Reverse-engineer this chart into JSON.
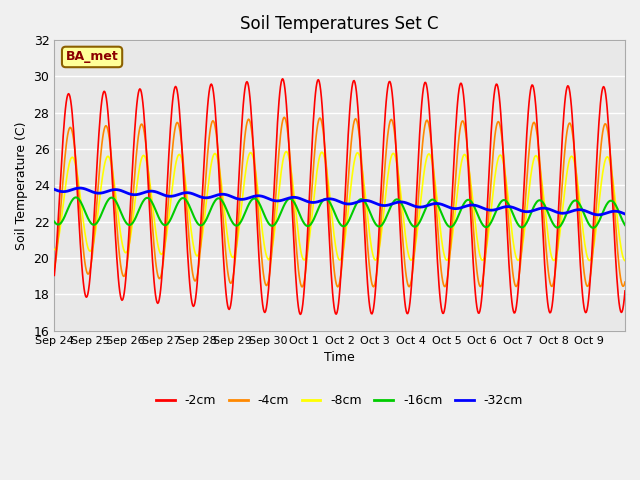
{
  "title": "Soil Temperatures Set C",
  "xlabel": "Time",
  "ylabel": "Soil Temperature (C)",
  "ylim": [
    16,
    32
  ],
  "yticks": [
    16,
    18,
    20,
    22,
    24,
    26,
    28,
    30,
    32
  ],
  "xtick_labels": [
    "Sep 24",
    "Sep 25",
    "Sep 26",
    "Sep 27",
    "Sep 28",
    "Sep 29",
    "Sep 30",
    "Oct 1",
    "Oct 2",
    "Oct 3",
    "Oct 4",
    "Oct 5",
    "Oct 6",
    "Oct 7",
    "Oct 8",
    "Oct 9"
  ],
  "annotation_text": "BA_met",
  "colors": {
    "-2cm": "#ff0000",
    "-4cm": "#ff8800",
    "-8cm": "#ffff00",
    "-16cm": "#00cc00",
    "-32cm": "#0000ff"
  },
  "background_color": "#e8e8e8",
  "fig_background": "#f0f0f0",
  "legend_entries": [
    "-2cm",
    "-4cm",
    "-8cm",
    "-16cm",
    "-32cm"
  ],
  "n_days": 16
}
